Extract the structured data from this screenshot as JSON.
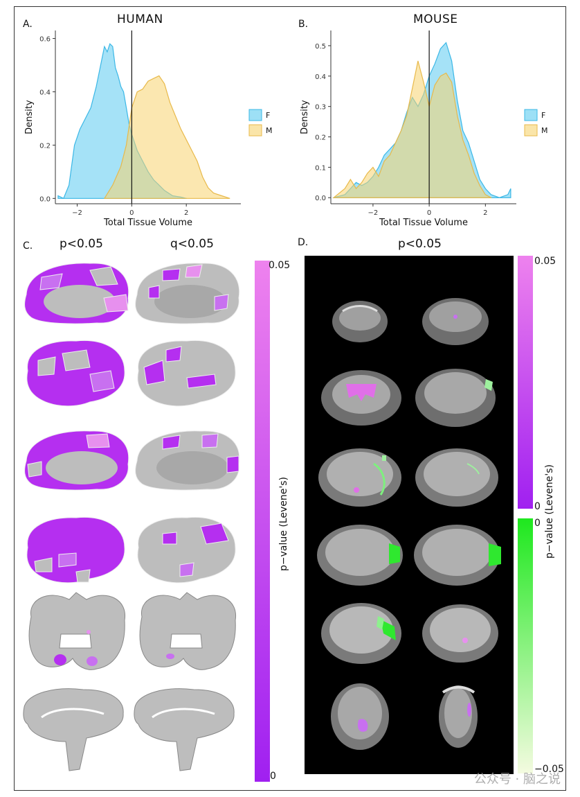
{
  "panels": {
    "a": {
      "letter": "A.",
      "title": "HUMAN"
    },
    "b": {
      "letter": "B.",
      "title": "MOUSE"
    },
    "c": {
      "letter": "C.",
      "col1": "p<0.05",
      "col2": "q<0.05",
      "colorbar_title": "p−value (Levene's)",
      "cbar_top": "0.05",
      "cbar_bottom": "0"
    },
    "d": {
      "letter": "D.",
      "title": "p<0.05",
      "colorbar_title": "p−value (Levene's)",
      "cbar_top": "0.05",
      "cbar_mid": "0",
      "cbar_mid2": "0",
      "cbar_bottom": "−0.05"
    }
  },
  "watermark": "公众号 · 脑之说",
  "colors": {
    "female": "#5bcbf0",
    "male": "#f7d46f",
    "overlap": "#a9c58a",
    "purple_dark": "#a020f0",
    "purple_light": "#ee82ee",
    "green": "#3ee83e",
    "gray": "#bdbdbd"
  },
  "chart_data": [
    {
      "type": "area",
      "title": "HUMAN",
      "xlabel": "Total Tissue Volume",
      "ylabel": "Density",
      "xlim": [
        -2.8,
        4.0
      ],
      "ylim": [
        -0.02,
        0.63
      ],
      "xticks": [
        -2,
        0,
        2
      ],
      "yticks": [
        0.0,
        0.2,
        0.4,
        0.6
      ],
      "ytick_labels": [
        "0.0",
        "0.2",
        "0.4",
        "0.6"
      ],
      "vline": 0,
      "legend": [
        "F",
        "M"
      ],
      "legend_position": "right",
      "series": [
        {
          "name": "F",
          "x": [
            -2.7,
            -2.5,
            -2.3,
            -2.1,
            -1.9,
            -1.7,
            -1.5,
            -1.3,
            -1.1,
            -1.0,
            -0.9,
            -0.8,
            -0.7,
            -0.6,
            -0.5,
            -0.4,
            -0.3,
            -0.2,
            -0.1,
            0.0,
            0.2,
            0.4,
            0.6,
            0.8,
            1.0,
            1.2,
            1.5,
            1.8,
            2.0
          ],
          "y": [
            0.01,
            0.0,
            0.05,
            0.2,
            0.26,
            0.3,
            0.34,
            0.42,
            0.52,
            0.57,
            0.55,
            0.58,
            0.57,
            0.49,
            0.46,
            0.42,
            0.4,
            0.34,
            0.28,
            0.24,
            0.18,
            0.14,
            0.1,
            0.07,
            0.05,
            0.03,
            0.01,
            0.005,
            0.0
          ]
        },
        {
          "name": "M",
          "x": [
            -1.0,
            -0.7,
            -0.4,
            -0.2,
            0.0,
            0.2,
            0.4,
            0.6,
            0.8,
            1.0,
            1.2,
            1.4,
            1.6,
            1.8,
            2.0,
            2.2,
            2.4,
            2.6,
            2.8,
            3.0,
            3.3,
            3.6
          ],
          "y": [
            0.0,
            0.05,
            0.12,
            0.2,
            0.34,
            0.4,
            0.41,
            0.44,
            0.45,
            0.46,
            0.43,
            0.36,
            0.31,
            0.26,
            0.22,
            0.18,
            0.14,
            0.08,
            0.04,
            0.02,
            0.01,
            0.0
          ]
        }
      ]
    },
    {
      "type": "area",
      "title": "MOUSE",
      "xlabel": "Total Tissue Volume",
      "ylabel": "Density",
      "xlim": [
        -3.5,
        3.1
      ],
      "ylim": [
        -0.02,
        0.55
      ],
      "xticks": [
        -2,
        0,
        2
      ],
      "yticks": [
        0.0,
        0.1,
        0.2,
        0.3,
        0.4,
        0.5
      ],
      "ytick_labels": [
        "0.0",
        "0.1",
        "0.2",
        "0.3",
        "0.4",
        "0.5"
      ],
      "vline": 0,
      "legend": [
        "F",
        "M"
      ],
      "legend_position": "right",
      "series": [
        {
          "name": "F",
          "x": [
            -3.4,
            -3.0,
            -2.8,
            -2.6,
            -2.4,
            -2.2,
            -2.0,
            -1.8,
            -1.6,
            -1.4,
            -1.2,
            -1.0,
            -0.8,
            -0.6,
            -0.4,
            -0.2,
            0.0,
            0.2,
            0.4,
            0.6,
            0.8,
            1.0,
            1.2,
            1.4,
            1.6,
            1.8,
            2.0,
            2.2,
            2.5,
            2.8,
            2.9
          ],
          "y": [
            0.0,
            0.01,
            0.03,
            0.05,
            0.04,
            0.05,
            0.07,
            0.1,
            0.14,
            0.16,
            0.18,
            0.22,
            0.28,
            0.33,
            0.3,
            0.34,
            0.4,
            0.44,
            0.49,
            0.51,
            0.45,
            0.32,
            0.22,
            0.18,
            0.12,
            0.06,
            0.03,
            0.01,
            0.0,
            0.01,
            0.03
          ]
        },
        {
          "name": "M",
          "x": [
            -3.4,
            -3.0,
            -2.8,
            -2.6,
            -2.4,
            -2.2,
            -2.0,
            -1.8,
            -1.6,
            -1.4,
            -1.2,
            -1.0,
            -0.8,
            -0.6,
            -0.4,
            -0.2,
            0.0,
            0.2,
            0.4,
            0.6,
            0.8,
            1.0,
            1.2,
            1.4,
            1.6,
            1.8,
            2.0,
            2.2
          ],
          "y": [
            0.0,
            0.03,
            0.06,
            0.03,
            0.05,
            0.08,
            0.1,
            0.07,
            0.12,
            0.14,
            0.18,
            0.22,
            0.27,
            0.36,
            0.45,
            0.38,
            0.3,
            0.37,
            0.4,
            0.41,
            0.38,
            0.27,
            0.19,
            0.14,
            0.08,
            0.04,
            0.01,
            0.0
          ]
        }
      ]
    }
  ]
}
